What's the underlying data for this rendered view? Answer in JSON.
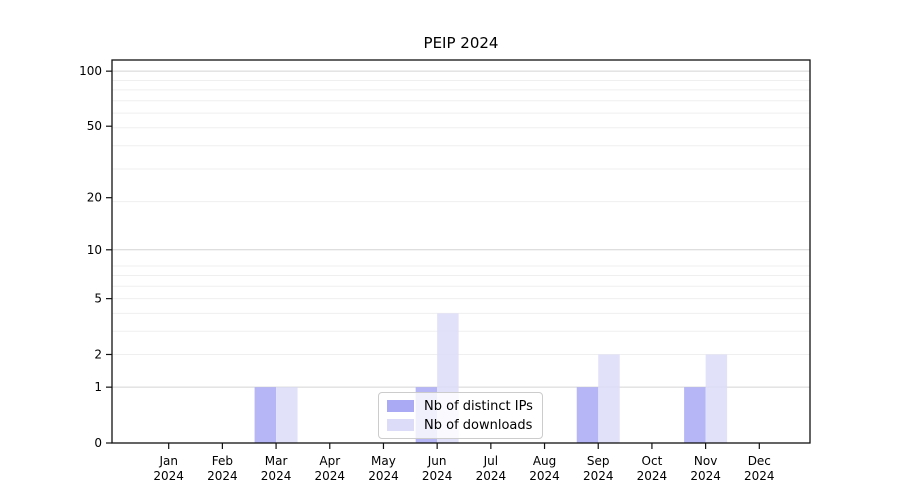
{
  "title": "PEIP 2024",
  "chart_data": {
    "type": "bar",
    "title": "PEIP 2024",
    "categories": [
      "Jan",
      "Feb",
      "Mar",
      "Apr",
      "May",
      "Jun",
      "Jul",
      "Aug",
      "Sep",
      "Oct",
      "Nov",
      "Dec"
    ],
    "category_year": "2024",
    "series": [
      {
        "name": "Nb of distinct IPs",
        "color": "#a9a9f4",
        "values": [
          0,
          0,
          1,
          0,
          0,
          1,
          0,
          0,
          1,
          0,
          1,
          0
        ]
      },
      {
        "name": "Nb of downloads",
        "color": "#dcdcf8",
        "values": [
          0,
          0,
          1,
          0,
          0,
          4,
          0,
          0,
          2,
          0,
          2,
          0
        ]
      }
    ],
    "xlabel": "",
    "ylabel": "",
    "y_ticks": [
      0,
      1,
      2,
      5,
      10,
      20,
      50,
      100
    ],
    "y_scale": "log1p",
    "ylim": [
      0,
      115
    ],
    "grid": "on",
    "major_grid_values": [
      1,
      10,
      100
    ],
    "minor_grid_values": [
      2,
      3,
      4,
      5,
      6,
      7,
      8,
      19,
      29,
      39,
      49,
      59,
      69,
      79,
      89
    ],
    "legend_position": "lower center"
  },
  "colors": {
    "axis": "#111111",
    "major_grid": "#d4d4d4",
    "minor_grid": "#efefef",
    "text": "#000000",
    "background": "#ffffff",
    "legend_border": "#cccccc"
  }
}
